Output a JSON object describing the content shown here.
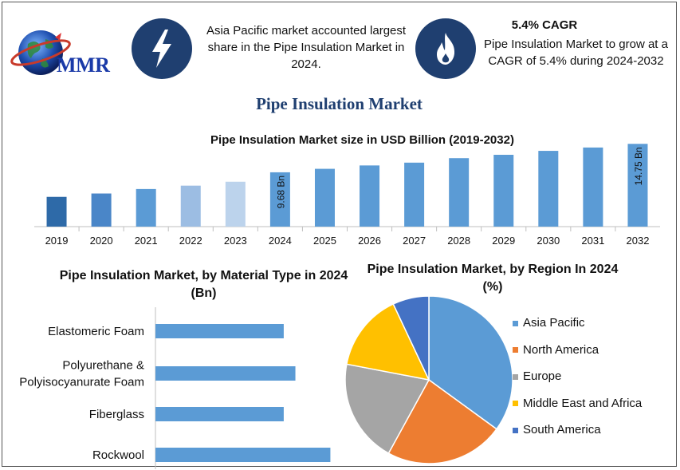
{
  "brand": {
    "logo_text": "MMR"
  },
  "info1": {
    "text": "Asia Pacific market accounted largest share in the Pipe Insulation Market in 2024.",
    "icon": "lightning-bolt-icon"
  },
  "info2": {
    "title": "5.4% CAGR",
    "text": "Pipe Insulation Market to grow at a CAGR of 5.4% during 2024-2032",
    "icon": "flame-icon"
  },
  "main_title": "Pipe Insulation Market",
  "colors": {
    "navy": "#1f3f70",
    "bar_blue": "#5b9bd5",
    "bar_dark": "#2e6aa8",
    "bar_mid": "#4a86c8",
    "bar_light": "#9cbde3",
    "bar_lighter": "#bcd3ec"
  },
  "chart_data": [
    {
      "type": "bar",
      "title": "Pipe Insulation Market size in USD Billion (2019-2032)",
      "categories": [
        "2019",
        "2020",
        "2021",
        "2022",
        "2023",
        "2024",
        "2025",
        "2026",
        "2027",
        "2028",
        "2029",
        "2030",
        "2031",
        "2032"
      ],
      "values": [
        5.3,
        5.9,
        6.7,
        7.3,
        8.0,
        9.68,
        10.3,
        10.9,
        11.4,
        12.2,
        12.8,
        13.5,
        14.1,
        14.75
      ],
      "data_labels": {
        "2024": "9.68 Bn",
        "2032": "14.75 Bn"
      },
      "ylim": [
        0,
        15.5
      ],
      "xlabel": "",
      "ylabel": ""
    },
    {
      "type": "bar",
      "orientation": "horizontal",
      "title": "Pipe Insulation Market, by Material Type in 2024 (Bn)",
      "categories": [
        "Elastomeric Foam",
        "Polyurethane & Polyisocyanurate Foam",
        "Fiberglass",
        "Rockwool"
      ],
      "values": [
        2.2,
        2.4,
        2.2,
        3.0
      ],
      "xlim": [
        0,
        3.5
      ]
    },
    {
      "type": "pie",
      "title": "Pipe Insulation Market, by Region In 2024 (%)",
      "categories": [
        "Asia Pacific",
        "North America",
        "Europe",
        "Middle East and Africa",
        "South America"
      ],
      "values": [
        35,
        23,
        20,
        15,
        7
      ],
      "colors": [
        "#5b9bd5",
        "#ed7d31",
        "#a5a5a5",
        "#ffc000",
        "#4472c4"
      ],
      "legend": "right"
    }
  ]
}
